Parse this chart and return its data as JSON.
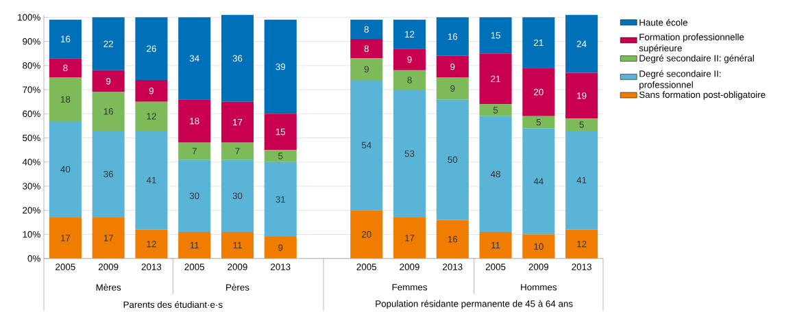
{
  "chart_data": {
    "type": "bar",
    "stacked": true,
    "categories": [
      "2005",
      "2009",
      "2013",
      "2005",
      "2009",
      "2013",
      null,
      "2005",
      "2009",
      "2013",
      "2005",
      "2009",
      "2013"
    ],
    "series": [
      {
        "name": "Sans formation post-obligatoire",
        "color": "#f07d00",
        "values": [
          17,
          17,
          12,
          11,
          11,
          9,
          null,
          20,
          17,
          16,
          11,
          10,
          12
        ]
      },
      {
        "name": "Degré secondaire II: professionnel",
        "color": "#5ab4d8",
        "values": [
          40,
          36,
          41,
          30,
          30,
          31,
          null,
          54,
          53,
          50,
          48,
          44,
          41
        ]
      },
      {
        "name": "Degré secondaire II: général",
        "color": "#7dbb5a",
        "values": [
          18,
          16,
          12,
          7,
          7,
          5,
          null,
          9,
          8,
          9,
          5,
          5,
          5
        ]
      },
      {
        "name": "Formation professionnelle supérieure",
        "color": "#c8004f",
        "values": [
          8,
          9,
          9,
          18,
          17,
          15,
          null,
          8,
          9,
          9,
          21,
          20,
          19
        ]
      },
      {
        "name": "Haute école",
        "color": "#0070b8",
        "values": [
          16,
          22,
          26,
          34,
          36,
          39,
          null,
          8,
          12,
          16,
          15,
          21,
          24
        ]
      }
    ],
    "ylim": [
      0,
      101
    ],
    "yticks": [
      {
        "value": 0,
        "label": "0%"
      },
      {
        "value": 10,
        "label": "10%"
      },
      {
        "value": 20,
        "label": "20%"
      },
      {
        "value": 30,
        "label": "30%"
      },
      {
        "value": 40,
        "label": "40%"
      },
      {
        "value": 50,
        "label": "50%"
      },
      {
        "value": 60,
        "label": "60%"
      },
      {
        "value": 70,
        "label": "70%"
      },
      {
        "value": 80,
        "label": "80%"
      },
      {
        "value": 90,
        "label": "90%"
      },
      {
        "value": 100,
        "label": "100%"
      }
    ],
    "grid": "y",
    "legend": "right",
    "data_labels": true,
    "annotations": [
      "Mères",
      "Pères",
      "Femmes",
      "Hommes",
      "Parents des étudiant·e·s",
      "Population résidante permanente de 45 à 64 ans"
    ]
  }
}
